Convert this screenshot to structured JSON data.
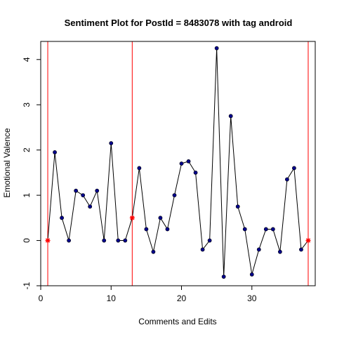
{
  "chart_data": {
    "type": "line",
    "title": "Sentiment Plot for PostId =  8483078  with tag  android",
    "xlabel": "Comments and Edits",
    "ylabel": "Emotional Valence",
    "xlim": [
      0,
      39
    ],
    "ylim": [
      -1,
      4.4
    ],
    "x_ticks": [
      0,
      10,
      20,
      30
    ],
    "y_ticks": [
      -1,
      0,
      1,
      2,
      3,
      4
    ],
    "grid": false,
    "series": [
      {
        "x": [
          1,
          2,
          3,
          4,
          5,
          6,
          7,
          8,
          9,
          10,
          11,
          12,
          13,
          14,
          15,
          16,
          17,
          18,
          19,
          20,
          21,
          22,
          23,
          24,
          25,
          26,
          27,
          28,
          29,
          30,
          31,
          32,
          33,
          34,
          35,
          36,
          37,
          38
        ],
        "values": [
          0,
          1.95,
          0.5,
          0,
          1.1,
          1.0,
          0.75,
          1.1,
          0,
          2.15,
          0,
          0,
          0.5,
          1.6,
          0.25,
          -0.25,
          0.5,
          0.25,
          1.0,
          1.7,
          1.75,
          1.5,
          -0.2,
          0,
          4.25,
          -0.8,
          2.75,
          0.75,
          0.25,
          -0.75,
          -0.2,
          0.25,
          0.25,
          -0.25,
          1.35,
          1.6,
          -0.2,
          0
        ]
      }
    ],
    "markers": {
      "point_color": "#00008b",
      "line_color": "#000000",
      "highlight_color": "#ff0000"
    },
    "highlight_points": [
      1,
      13,
      38
    ],
    "vertical_lines": [
      1,
      13,
      38
    ]
  }
}
